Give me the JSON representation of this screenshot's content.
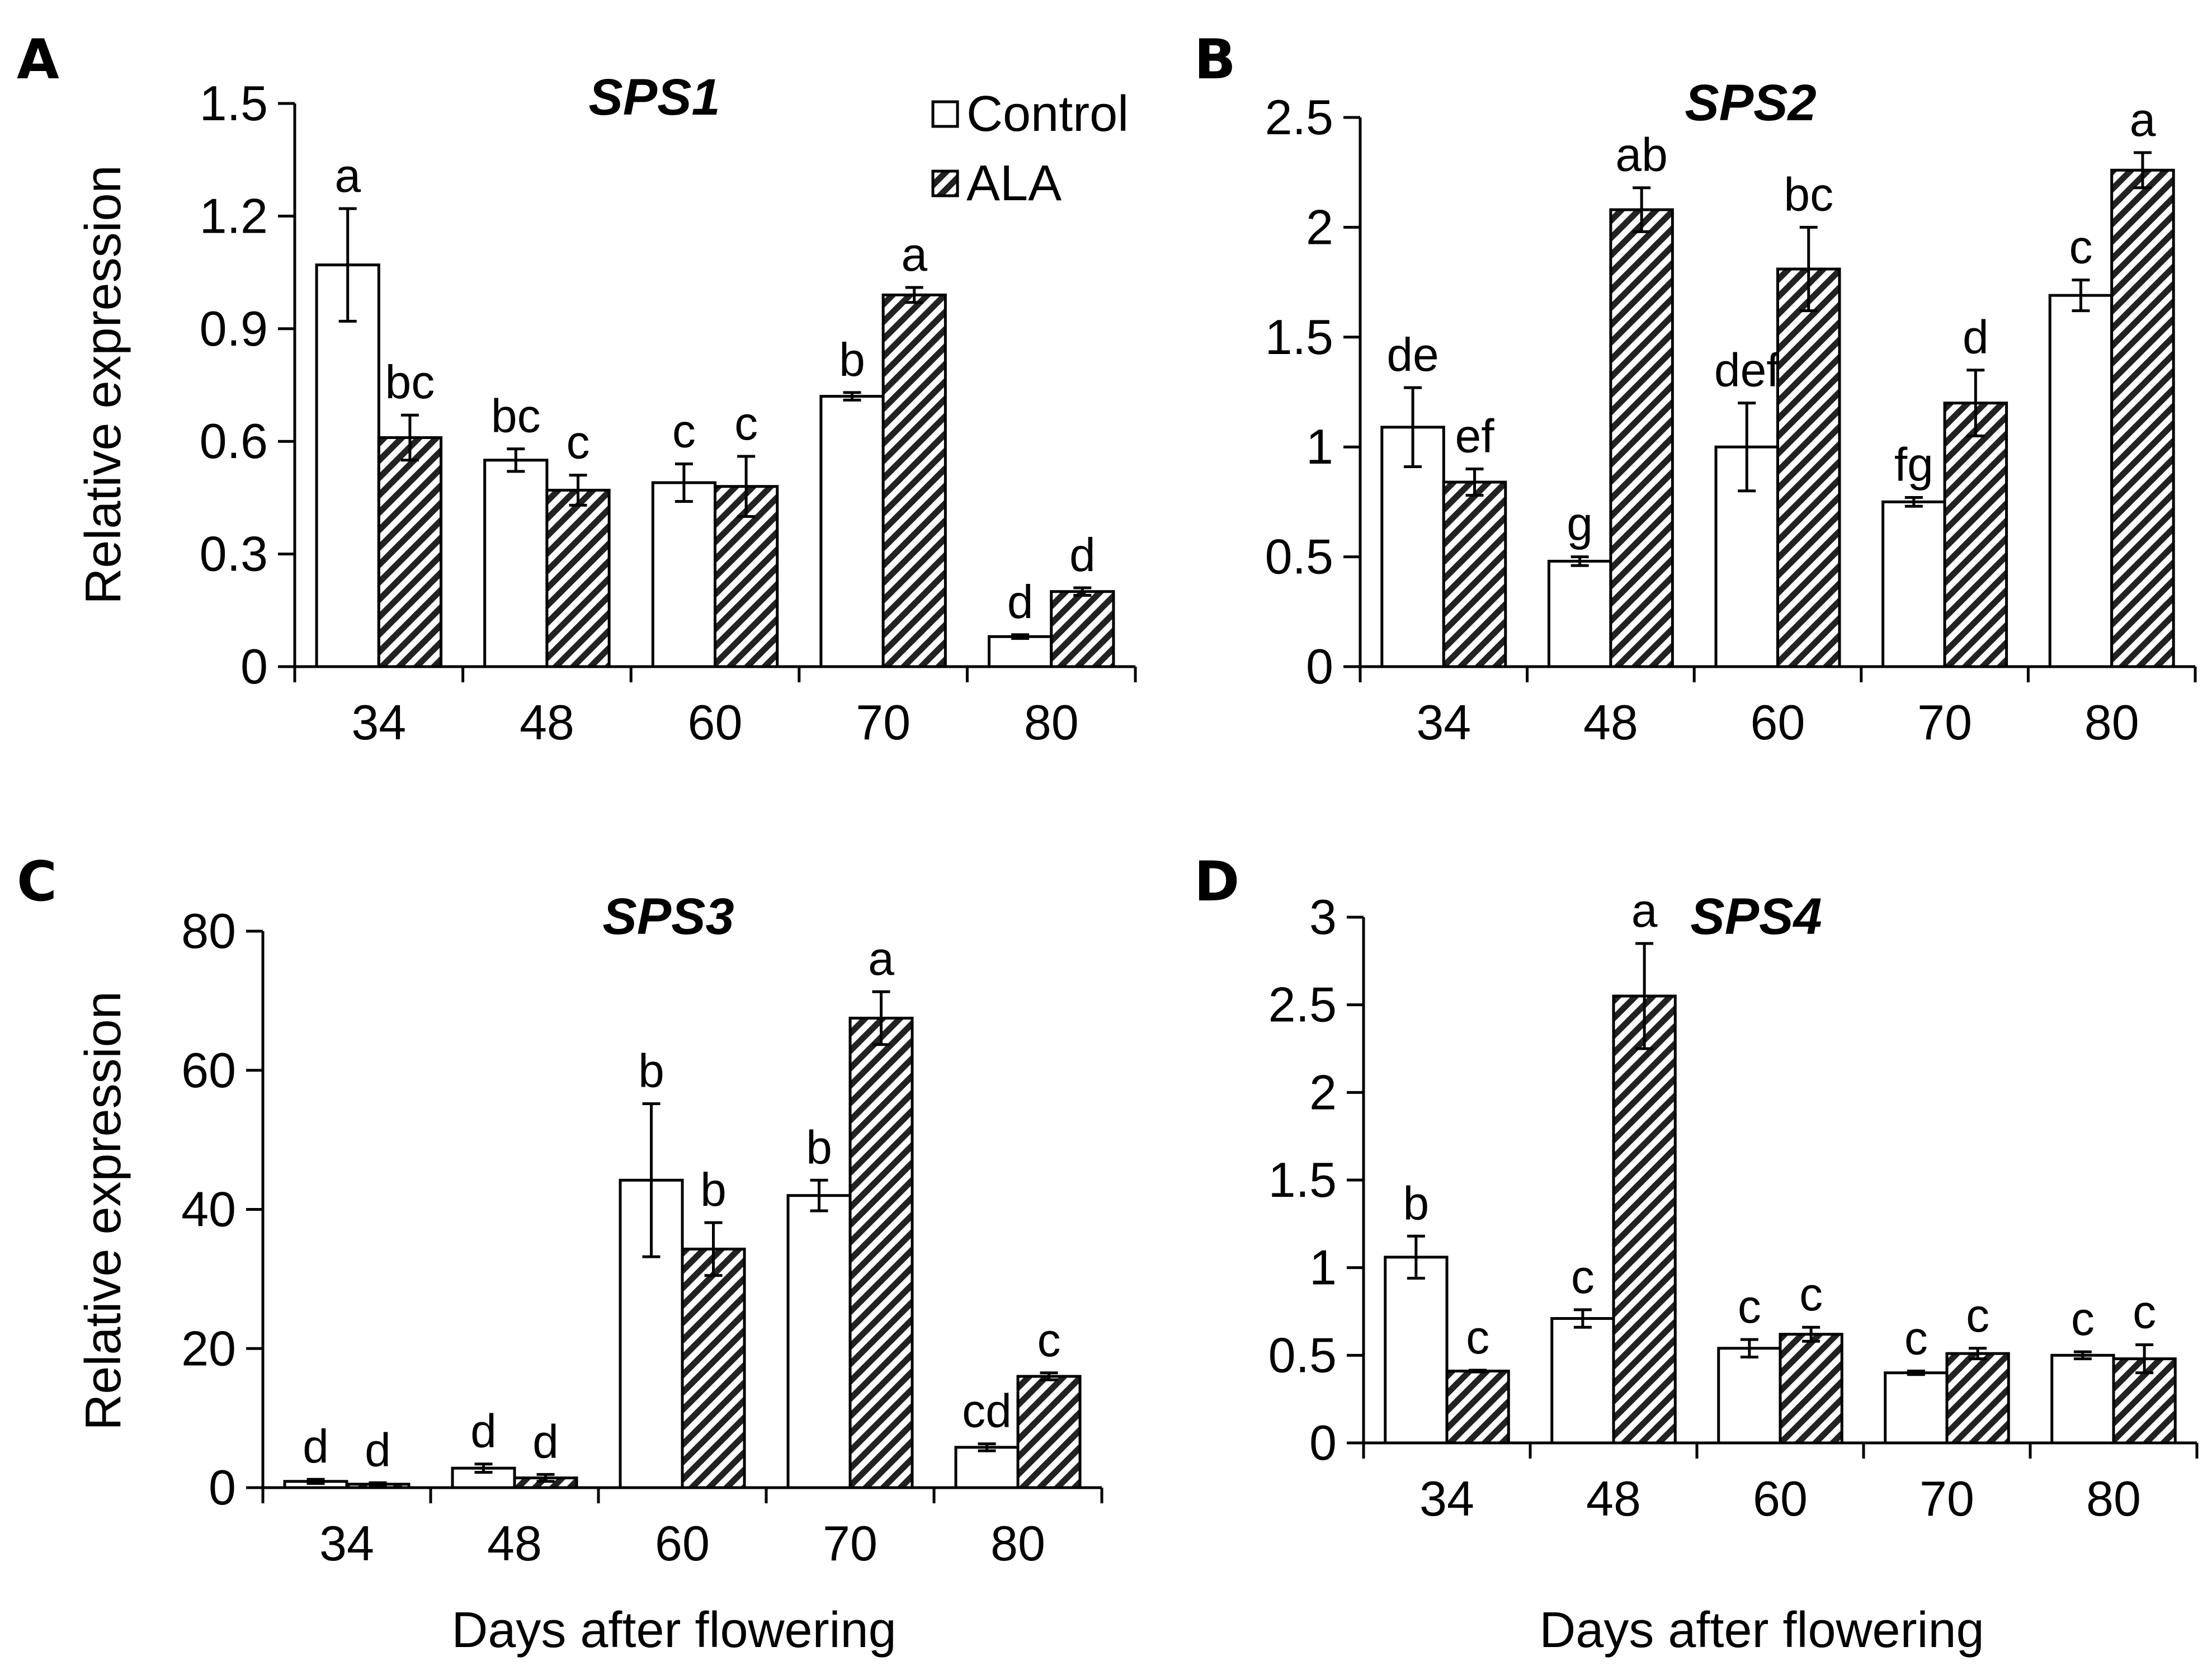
{
  "colors": {
    "control_fill": "#ffffff",
    "ala_hatch": "#222222",
    "stroke": "#000000"
  },
  "legend": [
    {
      "name": "Control",
      "pattern": "solid-white"
    },
    {
      "name": "ALA",
      "pattern": "diagonal-hatch"
    }
  ],
  "chart_data": [
    {
      "panel": "A",
      "type": "bar",
      "title": "SPS1",
      "categories": [
        "34",
        "48",
        "60",
        "70",
        "80"
      ],
      "ylabel": "Relative expression",
      "xlabel": "",
      "ylim": [
        0,
        1.5
      ],
      "yticks": [
        "0",
        "0.3",
        "0.6",
        "0.9",
        "1.2",
        "1.5"
      ],
      "series": [
        {
          "name": "Control",
          "values": [
            1.07,
            0.55,
            0.49,
            0.72,
            0.08
          ],
          "errors": [
            0.15,
            0.03,
            0.05,
            0.01,
            0.005
          ],
          "labels": [
            "a",
            "bc",
            "c",
            "b",
            "d"
          ]
        },
        {
          "name": "ALA",
          "values": [
            0.61,
            0.47,
            0.48,
            0.99,
            0.2
          ],
          "errors": [
            0.06,
            0.04,
            0.08,
            0.02,
            0.01
          ],
          "labels": [
            "bc",
            "c",
            "c",
            "a",
            "d"
          ]
        }
      ]
    },
    {
      "panel": "B",
      "type": "bar",
      "title": "SPS2",
      "categories": [
        "34",
        "48",
        "60",
        "70",
        "80"
      ],
      "ylabel": "",
      "xlabel": "",
      "ylim": [
        0,
        2.5
      ],
      "yticks": [
        "0",
        "0.5",
        "1",
        "1.5",
        "2",
        "2.5"
      ],
      "series": [
        {
          "name": "Control",
          "values": [
            1.09,
            0.48,
            1.0,
            0.75,
            1.69
          ],
          "errors": [
            0.18,
            0.02,
            0.2,
            0.02,
            0.07
          ],
          "labels": [
            "de",
            "g",
            "def",
            "fg",
            "c"
          ]
        },
        {
          "name": "ALA",
          "values": [
            0.84,
            2.08,
            1.81,
            1.2,
            2.26
          ],
          "errors": [
            0.06,
            0.1,
            0.19,
            0.15,
            0.08
          ],
          "labels": [
            "ef",
            "ab",
            "bc",
            "d",
            "a"
          ]
        }
      ]
    },
    {
      "panel": "C",
      "type": "bar",
      "title": "SPS3",
      "categories": [
        "34",
        "48",
        "60",
        "70",
        "80"
      ],
      "ylabel": "Relative expression",
      "xlabel": "Days after flowering",
      "ylim": [
        0,
        80
      ],
      "yticks": [
        "0",
        "20",
        "40",
        "60",
        "80"
      ],
      "series": [
        {
          "name": "Control",
          "values": [
            0.9,
            2.8,
            44.2,
            42.0,
            5.8
          ],
          "errors": [
            0.3,
            0.6,
            11.0,
            2.2,
            0.5
          ],
          "labels": [
            "d",
            "d",
            "b",
            "b",
            "cd"
          ]
        },
        {
          "name": "ALA",
          "values": [
            0.5,
            1.4,
            34.3,
            67.5,
            16.0
          ],
          "errors": [
            0.2,
            0.5,
            3.8,
            3.8,
            0.5
          ],
          "labels": [
            "d",
            "d",
            "b",
            "a",
            "c"
          ]
        }
      ]
    },
    {
      "panel": "D",
      "type": "bar",
      "title": "SPS4",
      "categories": [
        "34",
        "48",
        "60",
        "70",
        "80"
      ],
      "ylabel": "",
      "xlabel": "Days after flowering",
      "ylim": [
        0,
        3
      ],
      "yticks": [
        "0",
        "0.5",
        "1",
        "1.5",
        "2",
        "2.5",
        "3"
      ],
      "series": [
        {
          "name": "Control",
          "values": [
            1.06,
            0.71,
            0.54,
            0.4,
            0.5
          ],
          "errors": [
            0.12,
            0.05,
            0.05,
            0.01,
            0.02
          ],
          "labels": [
            "b",
            "c",
            "c",
            "c",
            "c"
          ]
        },
        {
          "name": "ALA",
          "values": [
            0.41,
            2.55,
            0.62,
            0.51,
            0.48
          ],
          "errors": [
            0.005,
            0.3,
            0.04,
            0.03,
            0.08
          ],
          "labels": [
            "c",
            "a",
            "c",
            "c",
            "c"
          ]
        }
      ]
    }
  ]
}
